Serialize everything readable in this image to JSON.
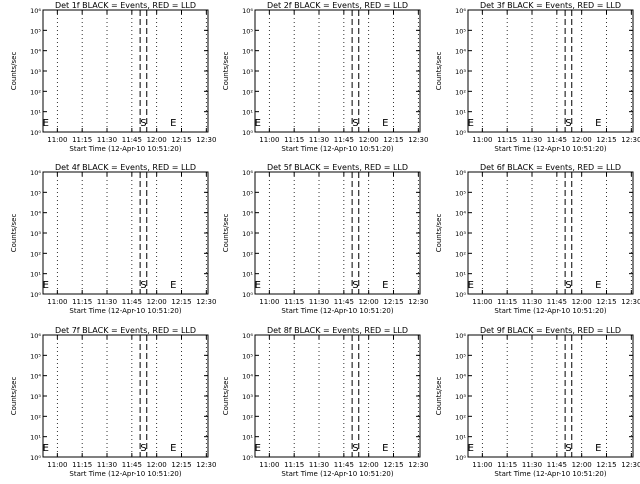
{
  "chart_data": [
    {
      "type": "line",
      "title": "Det 1f BLACK = Events, RED = LLD",
      "ylabel": "Counts/sec",
      "xlabel": "Start Time (12-Apr-10 10:51:20)",
      "x_ticks": [
        "11:00",
        "11:15",
        "11:30",
        "11:45",
        "12:00",
        "12:15",
        "12:30"
      ],
      "y_ticks": [
        "10⁰",
        "10¹",
        "10²",
        "10³",
        "10⁴",
        "10⁵",
        "10⁶"
      ],
      "yscale": "log",
      "markers": [
        {
          "label": "E",
          "x": "10:53"
        },
        {
          "label": "S",
          "x": "11:52"
        },
        {
          "label": "E",
          "x": "12:10"
        }
      ],
      "vlines_dashed": [
        "11:50",
        "11:54"
      ],
      "series": []
    },
    {
      "type": "line",
      "title": "Det 2f BLACK = Events, RED = LLD",
      "ylabel": "Counts/sec",
      "xlabel": "Start Time (12-Apr-10 10:51:20)",
      "x_ticks": [
        "11:00",
        "11:15",
        "11:30",
        "11:45",
        "12:00",
        "12:15",
        "12:30"
      ],
      "y_ticks": [
        "10⁰",
        "10¹",
        "10²",
        "10³",
        "10⁴",
        "10⁵",
        "10⁶"
      ],
      "yscale": "log",
      "markers": [
        {
          "label": "E",
          "x": "10:53"
        },
        {
          "label": "S",
          "x": "11:52"
        },
        {
          "label": "E",
          "x": "12:10"
        }
      ],
      "vlines_dashed": [
        "11:50",
        "11:54"
      ],
      "series": []
    },
    {
      "type": "line",
      "title": "Det 3f BLACK = Events, RED = LLD",
      "ylabel": "Counts/sec",
      "xlabel": "Start Time (12-Apr-10 10:51:20)",
      "x_ticks": [
        "11:00",
        "11:15",
        "11:30",
        "11:45",
        "12:00",
        "12:15",
        "12:30"
      ],
      "y_ticks": [
        "10⁰",
        "10¹",
        "10²",
        "10³",
        "10⁴",
        "10⁵",
        "10⁶"
      ],
      "yscale": "log",
      "markers": [
        {
          "label": "E",
          "x": "10:53"
        },
        {
          "label": "S",
          "x": "11:52"
        },
        {
          "label": "E",
          "x": "12:10"
        }
      ],
      "vlines_dashed": [
        "11:50",
        "11:54"
      ],
      "series": []
    },
    {
      "type": "line",
      "title": "Det 4f BLACK = Events, RED = LLD",
      "ylabel": "Counts/sec",
      "xlabel": "Start Time (12-Apr-10 10:51:20)",
      "x_ticks": [
        "11:00",
        "11:15",
        "11:30",
        "11:45",
        "12:00",
        "12:15",
        "12:30"
      ],
      "y_ticks": [
        "10⁰",
        "10¹",
        "10²",
        "10³",
        "10⁴",
        "10⁵",
        "10⁶"
      ],
      "yscale": "log",
      "markers": [
        {
          "label": "E",
          "x": "10:53"
        },
        {
          "label": "S",
          "x": "11:52"
        },
        {
          "label": "E",
          "x": "12:10"
        }
      ],
      "vlines_dashed": [
        "11:50",
        "11:54"
      ],
      "series": []
    },
    {
      "type": "line",
      "title": "Det 5f BLACK = Events, RED = LLD",
      "ylabel": "Counts/sec",
      "xlabel": "Start Time (12-Apr-10 10:51:20)",
      "x_ticks": [
        "11:00",
        "11:15",
        "11:30",
        "11:45",
        "12:00",
        "12:15",
        "12:30"
      ],
      "y_ticks": [
        "10⁰",
        "10¹",
        "10²",
        "10³",
        "10⁴",
        "10⁵",
        "10⁶"
      ],
      "yscale": "log",
      "markers": [
        {
          "label": "E",
          "x": "10:53"
        },
        {
          "label": "S",
          "x": "11:52"
        },
        {
          "label": "E",
          "x": "12:10"
        }
      ],
      "vlines_dashed": [
        "11:50",
        "11:54"
      ],
      "series": []
    },
    {
      "type": "line",
      "title": "Det 6f BLACK = Events, RED = LLD",
      "ylabel": "Counts/sec",
      "xlabel": "Start Time (12-Apr-10 10:51:20)",
      "x_ticks": [
        "11:00",
        "11:15",
        "11:30",
        "11:45",
        "12:00",
        "12:15",
        "12:30"
      ],
      "y_ticks": [
        "10⁰",
        "10¹",
        "10²",
        "10³",
        "10⁴",
        "10⁵",
        "10⁶"
      ],
      "yscale": "log",
      "markers": [
        {
          "label": "E",
          "x": "10:53"
        },
        {
          "label": "S",
          "x": "11:52"
        },
        {
          "label": "E",
          "x": "12:10"
        }
      ],
      "vlines_dashed": [
        "11:50",
        "11:54"
      ],
      "series": []
    },
    {
      "type": "line",
      "title": "Det 7f BLACK = Events, RED = LLD",
      "ylabel": "Counts/sec",
      "xlabel": "Start Time (12-Apr-10 10:51:20)",
      "x_ticks": [
        "11:00",
        "11:15",
        "11:30",
        "11:45",
        "12:00",
        "12:15",
        "12:30"
      ],
      "y_ticks": [
        "10⁰",
        "10¹",
        "10²",
        "10³",
        "10⁴",
        "10⁵",
        "10⁶"
      ],
      "yscale": "log",
      "markers": [
        {
          "label": "E",
          "x": "10:53"
        },
        {
          "label": "S",
          "x": "11:52"
        },
        {
          "label": "E",
          "x": "12:10"
        }
      ],
      "vlines_dashed": [
        "11:50",
        "11:54"
      ],
      "series": []
    },
    {
      "type": "line",
      "title": "Det 8f BLACK = Events, RED = LLD",
      "ylabel": "Counts/sec",
      "xlabel": "Start Time (12-Apr-10 10:51:20)",
      "x_ticks": [
        "11:00",
        "11:15",
        "11:30",
        "11:45",
        "12:00",
        "12:15",
        "12:30"
      ],
      "y_ticks": [
        "10⁰",
        "10¹",
        "10²",
        "10³",
        "10⁴",
        "10⁵",
        "10⁶"
      ],
      "yscale": "log",
      "markers": [
        {
          "label": "E",
          "x": "10:53"
        },
        {
          "label": "S",
          "x": "11:52"
        },
        {
          "label": "E",
          "x": "12:10"
        }
      ],
      "vlines_dashed": [
        "11:50",
        "11:54"
      ],
      "series": []
    },
    {
      "type": "line",
      "title": "Det 9f BLACK = Events, RED = LLD",
      "ylabel": "Counts/sec",
      "xlabel": "Start Time (12-Apr-10 10:51:20)",
      "x_ticks": [
        "11:00",
        "11:15",
        "11:30",
        "11:45",
        "12:00",
        "12:15",
        "12:30"
      ],
      "y_ticks": [
        "10⁰",
        "10¹",
        "10²",
        "10³",
        "10⁴",
        "10⁵",
        "10⁶"
      ],
      "yscale": "log",
      "markers": [
        {
          "label": "E",
          "x": "10:53"
        },
        {
          "label": "S",
          "x": "11:52"
        },
        {
          "label": "E",
          "x": "12:10"
        }
      ],
      "vlines_dashed": [
        "11:50",
        "11:54"
      ],
      "series": []
    }
  ]
}
